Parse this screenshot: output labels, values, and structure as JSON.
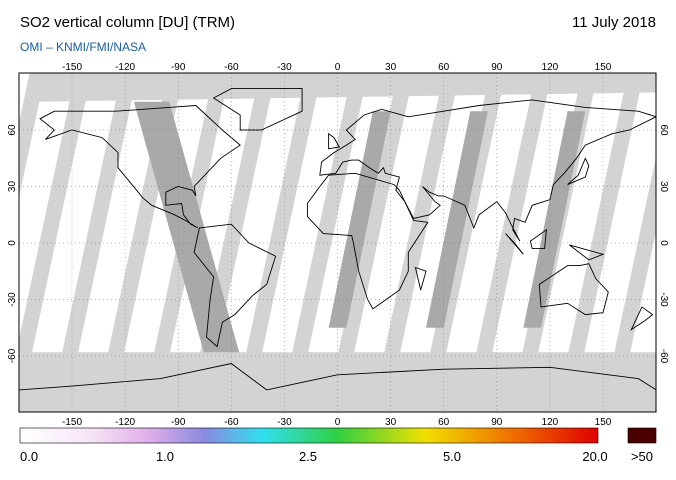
{
  "header": {
    "title": "SO2 vertical column [DU] (TRM)",
    "date": "11 July 2018",
    "source": "OMI  –  KNMI/FMI/NASA"
  },
  "map": {
    "lon_ticks": [
      -150,
      -120,
      -90,
      -60,
      -30,
      0,
      30,
      60,
      90,
      120,
      150
    ],
    "lat_ticks": [
      60,
      30,
      0,
      -30,
      -60
    ]
  },
  "colorbar": {
    "labels": [
      "0.0",
      "1.0",
      "2.5",
      "5.0",
      "20.0"
    ],
    "overflow_label": ">50"
  }
}
